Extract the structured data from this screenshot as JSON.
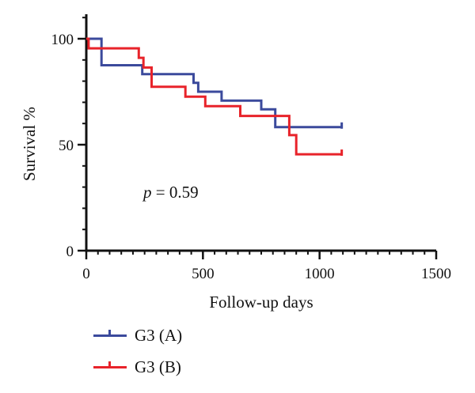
{
  "chart_data": {
    "type": "line",
    "step": true,
    "xlabel": "Follow-up days",
    "ylabel": "Survival %",
    "xlim": [
      0,
      1500
    ],
    "ylim": [
      0,
      105
    ],
    "xticks": [
      0,
      500,
      1000,
      1500
    ],
    "yticks": [
      0,
      50,
      100
    ],
    "xtick_labels": [
      "0",
      "500",
      "1000",
      "1500"
    ],
    "ytick_labels": [
      "0",
      "50",
      "100"
    ],
    "x_minor_step": 50,
    "y_minor_step": 10,
    "grid": false,
    "legend_position": "bottom-left",
    "annotation": {
      "p_symbol": "p",
      "p_rest": " = 0.59"
    },
    "series": [
      {
        "name": "G3 (A)",
        "color": "#3b4a9c",
        "points": [
          [
            0,
            100
          ],
          [
            65,
            100
          ],
          [
            65,
            87.5
          ],
          [
            240,
            87.5
          ],
          [
            240,
            83.3
          ],
          [
            460,
            83.3
          ],
          [
            460,
            79.2
          ],
          [
            480,
            79.2
          ],
          [
            480,
            75
          ],
          [
            580,
            75
          ],
          [
            580,
            70.8
          ],
          [
            750,
            70.8
          ],
          [
            750,
            66.7
          ],
          [
            810,
            66.7
          ],
          [
            810,
            58.3
          ],
          [
            1095,
            58.3
          ]
        ],
        "censor": [
          [
            1095,
            58.3
          ]
        ]
      },
      {
        "name": "G3 (B)",
        "color": "#e8232a",
        "points": [
          [
            0,
            100
          ],
          [
            10,
            100
          ],
          [
            10,
            95.5
          ],
          [
            225,
            95.5
          ],
          [
            225,
            91
          ],
          [
            245,
            91
          ],
          [
            245,
            86.4
          ],
          [
            280,
            86.4
          ],
          [
            280,
            77.3
          ],
          [
            425,
            77.3
          ],
          [
            425,
            72.7
          ],
          [
            510,
            72.7
          ],
          [
            510,
            68.2
          ],
          [
            660,
            68.2
          ],
          [
            660,
            63.6
          ],
          [
            870,
            63.6
          ],
          [
            870,
            54.5
          ],
          [
            900,
            54.5
          ],
          [
            900,
            45.5
          ],
          [
            1095,
            45.5
          ]
        ],
        "censor": [
          [
            1095,
            45.5
          ]
        ]
      }
    ]
  }
}
